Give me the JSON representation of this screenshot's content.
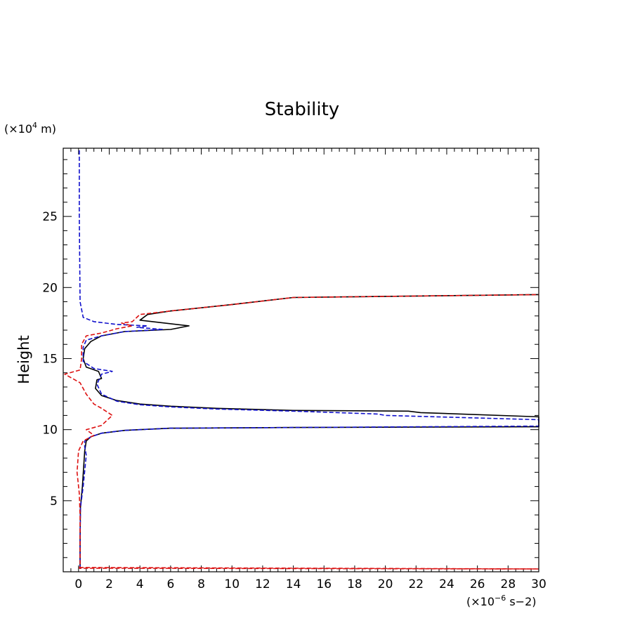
{
  "chart_data": {
    "type": "line",
    "title": "Stability",
    "ylabel": "Height",
    "y_unit": {
      "prefix": "(×10",
      "exp": "4",
      "suffix": " m)"
    },
    "x_unit": {
      "prefix": "(×10",
      "exp": "−6",
      "suffix": " s−2)"
    },
    "xlim": [
      -1,
      30
    ],
    "ylim": [
      0,
      29.8
    ],
    "x_ticks": [
      0,
      2,
      4,
      6,
      8,
      10,
      12,
      14,
      16,
      18,
      20,
      22,
      24,
      26,
      28,
      30
    ],
    "y_ticks": [
      5,
      10,
      15,
      20,
      25
    ],
    "grid": false,
    "legend": "none",
    "series": [
      {
        "color": "#000000",
        "dash": "solid",
        "points": [
          [
            0.1,
            0.2
          ],
          [
            0.1,
            2
          ],
          [
            0.12,
            4.5
          ],
          [
            0.25,
            6
          ],
          [
            0.4,
            8.5
          ],
          [
            0.5,
            9.2
          ],
          [
            0.8,
            9.5
          ],
          [
            1.5,
            9.75
          ],
          [
            3,
            9.95
          ],
          [
            6,
            10.1
          ],
          [
            14,
            10.15
          ],
          [
            30,
            10.2
          ],
          [
            30,
            10.9
          ],
          [
            22.3,
            11.2
          ],
          [
            21.5,
            11.3
          ],
          [
            14,
            11.35
          ],
          [
            9,
            11.5
          ],
          [
            6,
            11.65
          ],
          [
            4,
            11.8
          ],
          [
            2.5,
            12.05
          ],
          [
            1.5,
            12.4
          ],
          [
            1.1,
            12.9
          ],
          [
            1.2,
            13.5
          ],
          [
            1.5,
            13.6
          ],
          [
            1.3,
            14.1
          ],
          [
            0.5,
            14.4
          ],
          [
            0.3,
            15
          ],
          [
            0.4,
            15.7
          ],
          [
            0.8,
            16.2
          ],
          [
            1.5,
            16.6
          ],
          [
            3,
            16.9
          ],
          [
            6,
            17.05
          ],
          [
            7.2,
            17.3
          ],
          [
            4,
            17.7
          ],
          [
            4.5,
            18.1
          ],
          [
            6,
            18.35
          ],
          [
            10,
            18.8
          ],
          [
            14,
            19.3
          ],
          [
            30,
            19.5
          ]
        ]
      },
      {
        "color": "#1010cc",
        "dash": "dashed",
        "points": [
          [
            0.1,
            0.2
          ],
          [
            0.1,
            2
          ],
          [
            0.12,
            4.5
          ],
          [
            0.3,
            6
          ],
          [
            0.5,
            8.2
          ],
          [
            0.4,
            8.8
          ],
          [
            0.4,
            9.2
          ],
          [
            0.8,
            9.5
          ],
          [
            1.5,
            9.75
          ],
          [
            3,
            9.95
          ],
          [
            6,
            10.1
          ],
          [
            14,
            10.15
          ],
          [
            30,
            10.25
          ],
          [
            30,
            10.7
          ],
          [
            20,
            11
          ],
          [
            19.5,
            11.1
          ],
          [
            14,
            11.3
          ],
          [
            9,
            11.45
          ],
          [
            6,
            11.6
          ],
          [
            4,
            11.75
          ],
          [
            2.5,
            12
          ],
          [
            1.5,
            12.5
          ],
          [
            1.2,
            13.2
          ],
          [
            1.5,
            13.9
          ],
          [
            2.2,
            14.1
          ],
          [
            1,
            14.3
          ],
          [
            0.3,
            14.8
          ],
          [
            0.3,
            15.8
          ],
          [
            0.5,
            16.3
          ],
          [
            1.5,
            16.6
          ],
          [
            3,
            16.9
          ],
          [
            5.5,
            17.05
          ],
          [
            3.8,
            17.2
          ],
          [
            4.5,
            17.3
          ],
          [
            2.5,
            17.4
          ],
          [
            1,
            17.6
          ],
          [
            0.3,
            17.9
          ],
          [
            0.1,
            19
          ],
          [
            0.05,
            25
          ],
          [
            0.05,
            29.8
          ]
        ]
      },
      {
        "color": "#dd1111",
        "dash": "dashed",
        "points": [
          [
            0.05,
            0.3
          ],
          [
            30,
            0.2
          ],
          [
            0.05,
            0.25
          ],
          [
            0.1,
            0.4
          ],
          [
            0.1,
            4
          ],
          [
            0.05,
            5.5
          ],
          [
            -0.1,
            7
          ],
          [
            0,
            8.5
          ],
          [
            0.3,
            9.2
          ],
          [
            1,
            9.6
          ],
          [
            0.5,
            10
          ],
          [
            1.5,
            10.3
          ],
          [
            2.2,
            11
          ],
          [
            1.5,
            11.5
          ],
          [
            1,
            11.8
          ],
          [
            0.5,
            12.5
          ],
          [
            0.1,
            13.3
          ],
          [
            -0.9,
            13.9
          ],
          [
            0.1,
            14.2
          ],
          [
            0.2,
            15
          ],
          [
            0.2,
            16
          ],
          [
            0.5,
            16.6
          ],
          [
            1.5,
            16.8
          ],
          [
            2.5,
            17.1
          ],
          [
            3.5,
            17.3
          ],
          [
            2.8,
            17.5
          ],
          [
            3.5,
            17.6
          ],
          [
            4,
            18.1
          ],
          [
            6,
            18.35
          ],
          [
            10,
            18.8
          ],
          [
            14,
            19.3
          ],
          [
            30,
            19.5
          ]
        ]
      }
    ]
  }
}
